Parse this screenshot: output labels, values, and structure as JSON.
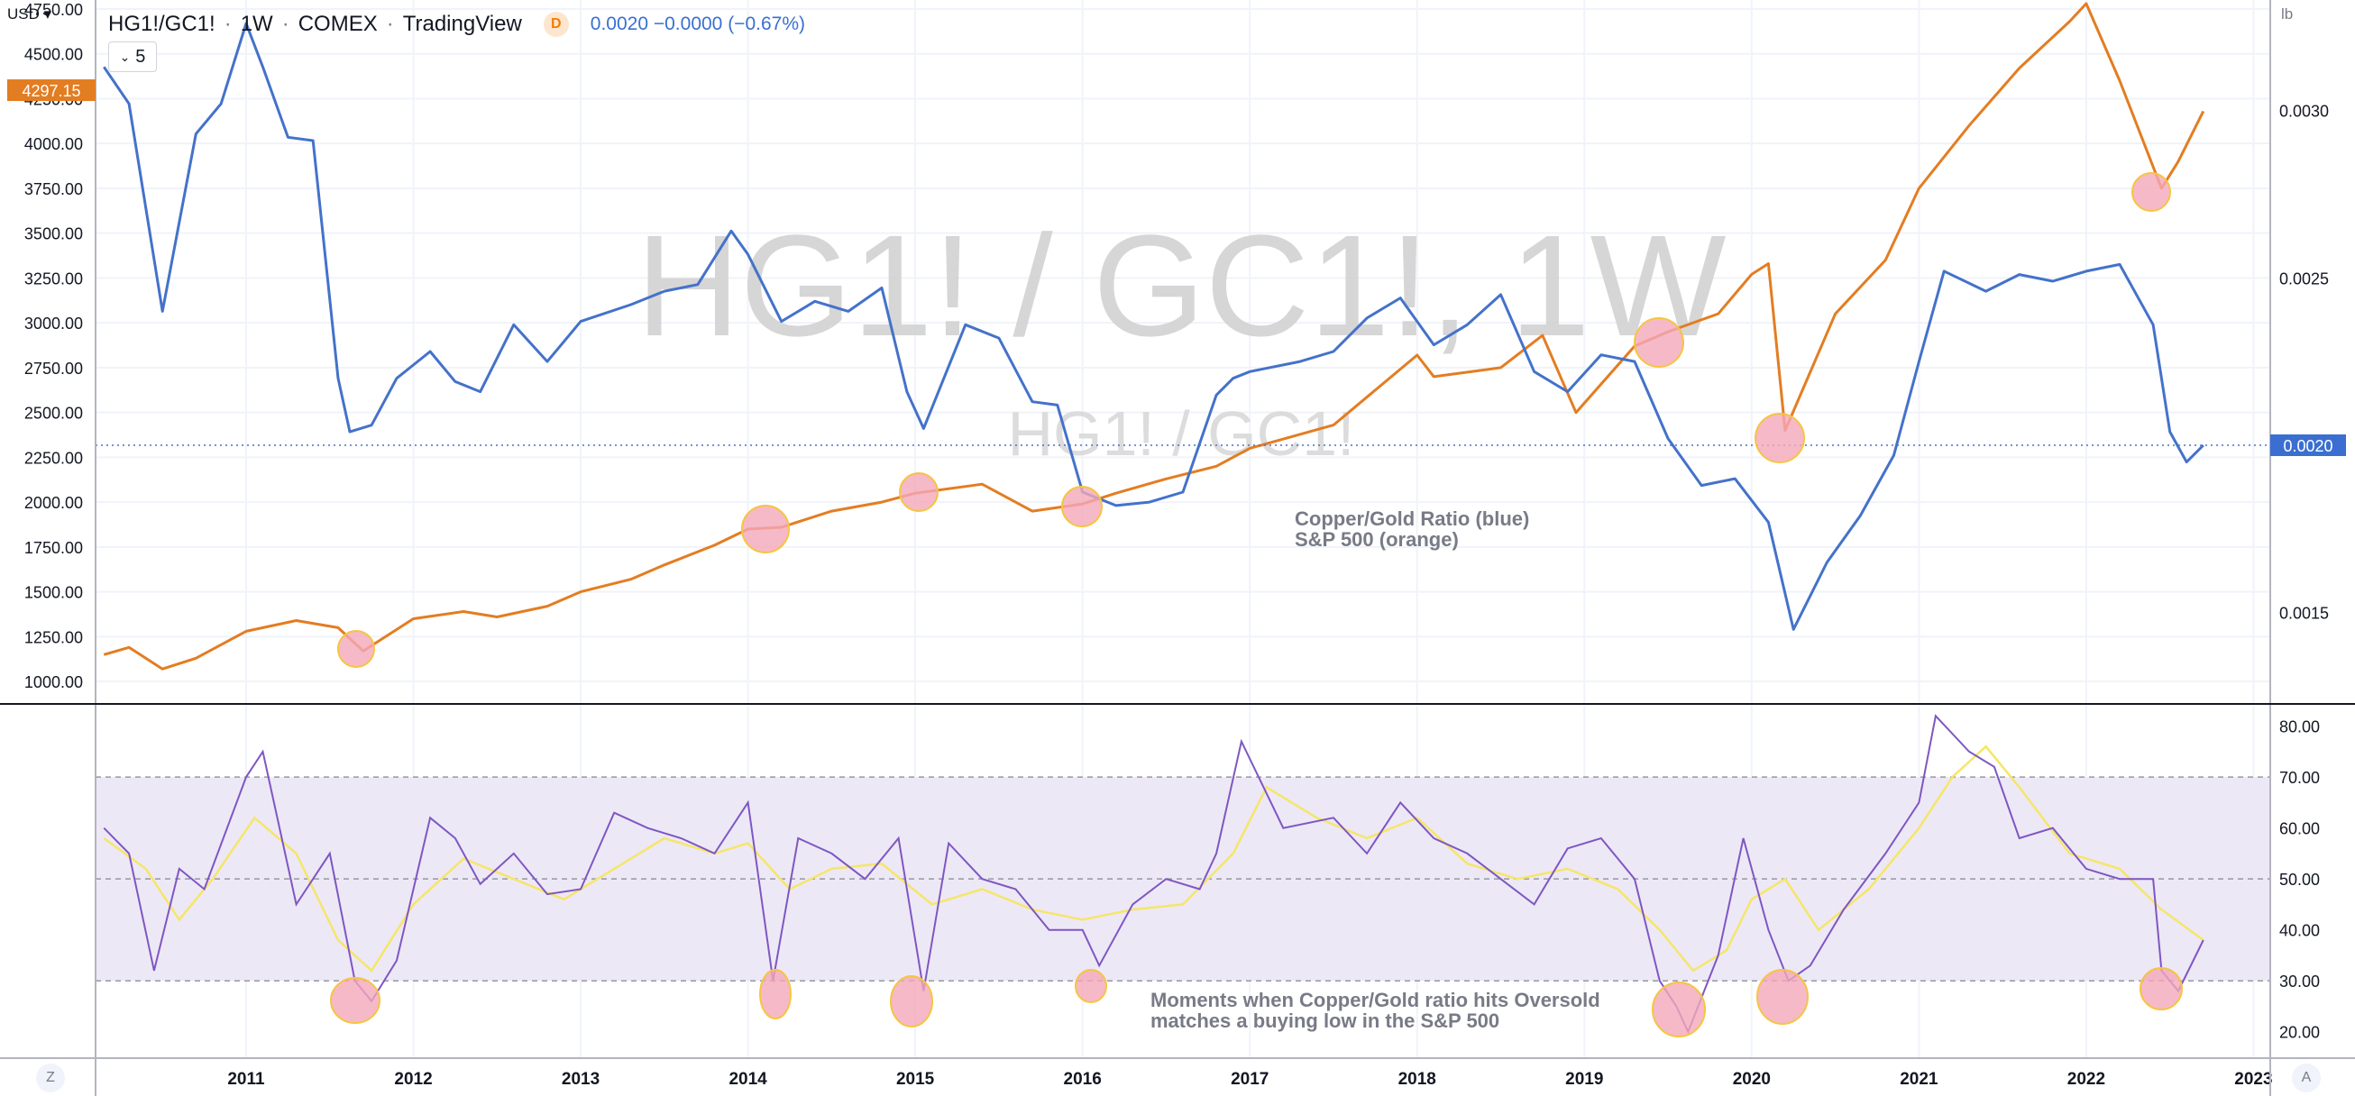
{
  "header": {
    "symbol": "HG1!/GC1!",
    "interval": "1W",
    "exchange": "COMEX",
    "source": "TradingView",
    "d_badge": "D",
    "quote": "0.0020  −0.0000 (−0.67%)",
    "indicator_btn": "5"
  },
  "left_currency": "USD",
  "right_unit": "lb",
  "bottom_buttons": {
    "left": "Z",
    "right": "A"
  },
  "colors": {
    "ratio": "#4472ca",
    "sp500": "#e37d22",
    "rsi": "#7e57c2",
    "rsi_ma": "#f5e66a",
    "rsi_band": "#ede8f6",
    "highlight_fill": "#f4a7b9",
    "highlight_stroke": "#f5c542",
    "left_badge": "#e37d22",
    "right_badge": "#3a6fd1"
  },
  "chart_data": [
    {
      "type": "line",
      "pane": "main",
      "title": "",
      "x_ticks": [
        "2011",
        "2012",
        "2013",
        "2014",
        "2015",
        "2016",
        "2017",
        "2018",
        "2019",
        "2020",
        "2021",
        "2022",
        "2023"
      ],
      "xlim": [
        2010.1,
        2023.1
      ],
      "left_axis": {
        "ticks": [
          "4750.00",
          "4500.00",
          "4250.00",
          "4000.00",
          "3750.00",
          "3500.00",
          "3250.00",
          "3000.00",
          "2750.00",
          "2500.00",
          "2250.00",
          "2000.00",
          "1750.00",
          "1500.00",
          "1250.00",
          "1000.00"
        ],
        "ylim": [
          880,
          4800
        ],
        "last_value_label": "4297.15"
      },
      "right_axis": {
        "ticks": [
          "0.0030",
          "0.0025",
          "0.0015"
        ],
        "ylim": [
          0.00123,
          0.00333
        ],
        "last_value_label": "0.0020"
      },
      "watermark": [
        "HG1! / GC1!, 1W",
        "HG1! / GC1!"
      ],
      "annotation": [
        "Copper/Gold Ratio (blue)",
        "S&P 500 (orange)"
      ],
      "series": [
        {
          "name": "",
          "axis": "right",
          "x": [
            2010.15,
            2010.3,
            2010.5,
            2010.7,
            2010.85,
            2011.0,
            2011.1,
            2011.25,
            2011.4,
            2011.55,
            2011.62,
            2011.75,
            2011.9,
            2012.1,
            2012.25,
            2012.4,
            2012.6,
            2012.8,
            2013.0,
            2013.3,
            2013.5,
            2013.7,
            2013.9,
            2014.0,
            2014.2,
            2014.4,
            2014.6,
            2014.8,
            2014.95,
            2015.05,
            2015.3,
            2015.5,
            2015.7,
            2015.85,
            2016.0,
            2016.2,
            2016.4,
            2016.6,
            2016.8,
            2016.9,
            2017.0,
            2017.3,
            2017.5,
            2017.7,
            2017.9,
            2018.1,
            2018.3,
            2018.5,
            2018.7,
            2018.9,
            2019.1,
            2019.3,
            2019.5,
            2019.7,
            2019.9,
            2020.1,
            2020.25,
            2020.45,
            2020.65,
            2020.85,
            2021.0,
            2021.15,
            2021.4,
            2021.6,
            2021.8,
            2022.0,
            2022.2,
            2022.4,
            2022.5,
            2022.6,
            2022.7
          ],
          "y": [
            0.00313,
            0.00302,
            0.0024,
            0.00293,
            0.00302,
            0.00326,
            0.00313,
            0.00292,
            0.00291,
            0.0022,
            0.00204,
            0.00206,
            0.0022,
            0.00228,
            0.00219,
            0.00216,
            0.00236,
            0.00225,
            0.00237,
            0.00242,
            0.00246,
            0.00248,
            0.00264,
            0.00257,
            0.00237,
            0.00243,
            0.0024,
            0.00247,
            0.00216,
            0.00205,
            0.00236,
            0.00232,
            0.00213,
            0.00212,
            0.00186,
            0.00182,
            0.00183,
            0.00186,
            0.00215,
            0.0022,
            0.00222,
            0.00225,
            0.00228,
            0.00238,
            0.00244,
            0.0023,
            0.00236,
            0.00245,
            0.00222,
            0.00216,
            0.00227,
            0.00225,
            0.00202,
            0.00188,
            0.0019,
            0.00177,
            0.00145,
            0.00165,
            0.00179,
            0.00197,
            0.00225,
            0.00252,
            0.00246,
            0.00251,
            0.00249,
            0.00252,
            0.00254,
            0.00236,
            0.00204,
            0.00195,
            0.002
          ]
        },
        {
          "name": "",
          "axis": "left",
          "x": [
            2010.15,
            2010.3,
            2010.5,
            2010.7,
            2011.0,
            2011.3,
            2011.55,
            2011.7,
            2012.0,
            2012.3,
            2012.5,
            2012.8,
            2013.0,
            2013.3,
            2013.5,
            2013.8,
            2014.0,
            2014.2,
            2014.5,
            2014.8,
            2015.0,
            2015.4,
            2015.7,
            2016.0,
            2016.2,
            2016.5,
            2016.8,
            2017.0,
            2017.5,
            2018.0,
            2018.1,
            2018.5,
            2018.75,
            2018.95,
            2019.3,
            2019.5,
            2019.8,
            2020.0,
            2020.1,
            2020.2,
            2020.5,
            2020.8,
            2021.0,
            2021.3,
            2021.6,
            2021.9,
            2022.0,
            2022.2,
            2022.45,
            2022.55,
            2022.7
          ],
          "y": [
            1150,
            1190,
            1070,
            1130,
            1280,
            1340,
            1300,
            1170,
            1350,
            1390,
            1360,
            1420,
            1500,
            1570,
            1650,
            1760,
            1850,
            1860,
            1950,
            2000,
            2050,
            2100,
            1950,
            1990,
            2050,
            2130,
            2200,
            2300,
            2430,
            2820,
            2700,
            2750,
            2930,
            2500,
            2870,
            2950,
            3050,
            3270,
            3330,
            2400,
            3050,
            3350,
            3750,
            4100,
            4420,
            4680,
            4780,
            4350,
            3750,
            3900,
            4180
          ]
        }
      ]
    },
    {
      "type": "line",
      "pane": "rsi",
      "title": "",
      "x_ticks": [
        "2011",
        "2012",
        "2013",
        "2014",
        "2015",
        "2016",
        "2017",
        "2018",
        "2019",
        "2020",
        "2021",
        "2022",
        "2023"
      ],
      "xlim": [
        2010.1,
        2023.1
      ],
      "y_ticks": [
        "80.00",
        "70.00",
        "60.00",
        "50.00",
        "40.00",
        "30.00",
        "20.00"
      ],
      "ylim": [
        15,
        84
      ],
      "bands": {
        "upper": 70,
        "middle": 50,
        "lower": 30
      },
      "annotation": [
        "Moments when Copper/Gold ratio hits Oversold",
        "matches a buying low in the S&P 500"
      ],
      "series": [
        {
          "name": "",
          "x": [
            2010.15,
            2010.3,
            2010.45,
            2010.6,
            2010.75,
            2011.0,
            2011.1,
            2011.3,
            2011.5,
            2011.65,
            2011.75,
            2011.9,
            2012.1,
            2012.25,
            2012.4,
            2012.6,
            2012.8,
            2013.0,
            2013.2,
            2013.4,
            2013.6,
            2013.8,
            2014.0,
            2014.15,
            2014.3,
            2014.5,
            2014.7,
            2014.9,
            2015.05,
            2015.2,
            2015.4,
            2015.6,
            2015.8,
            2016.0,
            2016.1,
            2016.3,
            2016.5,
            2016.7,
            2016.8,
            2016.95,
            2017.2,
            2017.5,
            2017.7,
            2017.9,
            2018.1,
            2018.3,
            2018.5,
            2018.7,
            2018.9,
            2019.1,
            2019.3,
            2019.45,
            2019.55,
            2019.62,
            2019.8,
            2019.95,
            2020.1,
            2020.22,
            2020.35,
            2020.55,
            2020.8,
            2021.0,
            2021.1,
            2021.3,
            2021.45,
            2021.6,
            2021.8,
            2022.0,
            2022.2,
            2022.4,
            2022.45,
            2022.55,
            2022.7
          ],
          "y": [
            60,
            55,
            32,
            52,
            48,
            70,
            75,
            45,
            55,
            30,
            26,
            34,
            62,
            58,
            49,
            55,
            47,
            48,
            63,
            60,
            58,
            55,
            65,
            30,
            58,
            55,
            50,
            58,
            28,
            57,
            50,
            48,
            40,
            40,
            33,
            45,
            50,
            48,
            55,
            77,
            60,
            62,
            55,
            65,
            58,
            55,
            50,
            45,
            56,
            58,
            50,
            30,
            25,
            20,
            35,
            58,
            40,
            30,
            33,
            44,
            55,
            65,
            82,
            75,
            72,
            58,
            60,
            52,
            50,
            50,
            32,
            28,
            38
          ]
        },
        {
          "name": "",
          "x": [
            2010.15,
            2010.4,
            2010.6,
            2010.8,
            2011.05,
            2011.3,
            2011.55,
            2011.75,
            2012.0,
            2012.3,
            2012.6,
            2012.9,
            2013.2,
            2013.5,
            2013.8,
            2014.0,
            2014.25,
            2014.5,
            2014.8,
            2015.1,
            2015.4,
            2015.7,
            2016.0,
            2016.3,
            2016.6,
            2016.9,
            2017.1,
            2017.4,
            2017.7,
            2018.0,
            2018.3,
            2018.6,
            2018.9,
            2019.2,
            2019.45,
            2019.65,
            2019.85,
            2020.0,
            2020.2,
            2020.4,
            2020.7,
            2021.0,
            2021.2,
            2021.4,
            2021.6,
            2021.9,
            2022.2,
            2022.45,
            2022.7
          ],
          "y": [
            58,
            52,
            42,
            50,
            62,
            55,
            38,
            32,
            45,
            54,
            50,
            46,
            52,
            58,
            55,
            57,
            48,
            52,
            53,
            45,
            48,
            44,
            42,
            44,
            45,
            55,
            68,
            62,
            58,
            62,
            53,
            50,
            52,
            48,
            40,
            32,
            36,
            46,
            50,
            40,
            48,
            60,
            70,
            76,
            68,
            55,
            52,
            44,
            38
          ]
        }
      ]
    }
  ]
}
